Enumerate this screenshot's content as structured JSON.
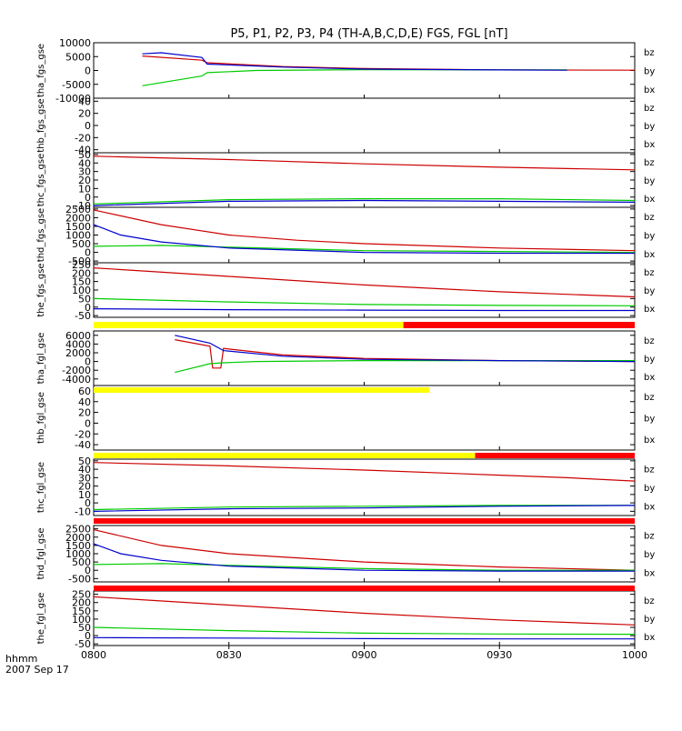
{
  "title": "P5, P1, P2, P3, P4 (TH-A,B,C,D,E) FGS, FGL [nT]",
  "footer": {
    "time_label": "hhmm",
    "date_label": "2007 Sep 17"
  },
  "colors": {
    "bz": "#cc0000",
    "by": "#00cc00",
    "bx": "#0000cc",
    "bar_yellow": "#ffff00",
    "bar_red": "#ff0000",
    "bar_black": "#000000"
  },
  "chart_data": [
    {
      "type": "line",
      "ylabel": "tha_fgs_gse",
      "ylim": [
        -10000,
        10000
      ],
      "yticks": [
        10000,
        5000,
        0,
        -5000,
        -10000
      ],
      "ytick_labels": [
        "10000",
        "5000",
        "0",
        "-5000",
        "-10000"
      ],
      "legend": [
        "bz",
        "by",
        "bx"
      ],
      "series": [
        {
          "name": "bz",
          "points": [
            [
              8.18,
              5200
            ],
            [
              8.4,
              3700
            ],
            [
              8.42,
              2800
            ],
            [
              8.7,
              1400
            ],
            [
              9.0,
              700
            ],
            [
              9.5,
              200
            ],
            [
              10.0,
              100
            ]
          ]
        },
        {
          "name": "by",
          "points": [
            [
              8.18,
              -5500
            ],
            [
              8.4,
              -2000
            ],
            [
              8.42,
              -800
            ],
            [
              8.6,
              0
            ],
            [
              9.0,
              300
            ],
            [
              9.5,
              200
            ],
            [
              9.75,
              200
            ]
          ]
        },
        {
          "name": "bx",
          "points": [
            [
              8.18,
              6000
            ],
            [
              8.25,
              6400
            ],
            [
              8.4,
              4700
            ],
            [
              8.42,
              2300
            ],
            [
              8.7,
              1200
            ],
            [
              9.0,
              500
            ],
            [
              9.5,
              200
            ],
            [
              9.75,
              100
            ]
          ]
        }
      ]
    },
    {
      "type": "line",
      "ylabel": "thb_fgs_gse",
      "ylim": [
        -45,
        45
      ],
      "yticks": [
        40,
        20,
        0,
        -20,
        -40
      ],
      "ytick_labels": [
        "40",
        "20",
        "0",
        "-20",
        "-40"
      ],
      "legend": [
        "bz",
        "by",
        "bx"
      ],
      "series": []
    },
    {
      "type": "line",
      "ylabel": "thc_fgs_gse",
      "ylim": [
        -12,
        52
      ],
      "yticks": [
        50,
        40,
        30,
        20,
        10,
        0,
        -10
      ],
      "ytick_labels": [
        "50",
        "40",
        "30",
        "20",
        "10",
        "0",
        "-10"
      ],
      "legend": [
        "bz",
        "by",
        "bx"
      ],
      "series": [
        {
          "name": "bz",
          "points": [
            [
              8.0,
              48
            ],
            [
              8.5,
              44
            ],
            [
              9.0,
              39
            ],
            [
              9.5,
              35
            ],
            [
              10.0,
              32
            ]
          ]
        },
        {
          "name": "by",
          "points": [
            [
              8.0,
              -8
            ],
            [
              8.5,
              -3
            ],
            [
              9.0,
              -2
            ],
            [
              9.5,
              -2
            ],
            [
              10.0,
              -4
            ]
          ]
        },
        {
          "name": "bx",
          "points": [
            [
              8.0,
              -10
            ],
            [
              8.5,
              -5
            ],
            [
              9.0,
              -4
            ],
            [
              9.5,
              -5
            ],
            [
              10.0,
              -6
            ]
          ]
        }
      ]
    },
    {
      "type": "line",
      "ylabel": "thd_fgs_gse",
      "ylim": [
        -600,
        2600
      ],
      "yticks": [
        2500,
        2000,
        1500,
        1000,
        500,
        0,
        -500
      ],
      "ytick_labels": [
        "2500",
        "2000",
        "1500",
        "1000",
        "500",
        "0",
        "-500"
      ],
      "legend": [
        "bz",
        "by",
        "bx"
      ],
      "series": [
        {
          "name": "bz",
          "points": [
            [
              8.0,
              2450
            ],
            [
              8.25,
              1600
            ],
            [
              8.5,
              1000
            ],
            [
              8.75,
              700
            ],
            [
              9.0,
              500
            ],
            [
              9.5,
              250
            ],
            [
              10.0,
              100
            ]
          ]
        },
        {
          "name": "by",
          "points": [
            [
              8.0,
              350
            ],
            [
              8.25,
              400
            ],
            [
              8.5,
              300
            ],
            [
              9.0,
              100
            ],
            [
              9.5,
              50
            ],
            [
              10.0,
              0
            ]
          ]
        },
        {
          "name": "bx",
          "points": [
            [
              8.0,
              1600
            ],
            [
              8.1,
              1000
            ],
            [
              8.25,
              600
            ],
            [
              8.5,
              250
            ],
            [
              9.0,
              0
            ],
            [
              9.5,
              -50
            ],
            [
              10.0,
              -50
            ]
          ]
        }
      ]
    },
    {
      "type": "line",
      "ylabel": "the_fgs_gse",
      "ylim": [
        -60,
        260
      ],
      "yticks": [
        250,
        200,
        150,
        100,
        50,
        0,
        -50
      ],
      "ytick_labels": [
        "250",
        "200",
        "150",
        "100",
        "50",
        "0",
        "-50"
      ],
      "legend": [
        "bz",
        "by",
        "bx"
      ],
      "series": [
        {
          "name": "bz",
          "points": [
            [
              8.0,
              230
            ],
            [
              8.5,
              180
            ],
            [
              9.0,
              130
            ],
            [
              9.5,
              90
            ],
            [
              10.0,
              60
            ]
          ]
        },
        {
          "name": "by",
          "points": [
            [
              8.0,
              50
            ],
            [
              8.5,
              30
            ],
            [
              9.0,
              15
            ],
            [
              9.5,
              10
            ],
            [
              10.0,
              8
            ]
          ]
        },
        {
          "name": "bx",
          "points": [
            [
              8.0,
              -10
            ],
            [
              8.5,
              -15
            ],
            [
              9.0,
              -18
            ],
            [
              9.5,
              -20
            ],
            [
              10.0,
              -20
            ]
          ]
        }
      ]
    },
    {
      "type": "line",
      "ylabel": "tha_fgl_gse",
      "ylim": [
        -5500,
        7000
      ],
      "yticks": [
        6000,
        4000,
        2000,
        0,
        -2000,
        -4000
      ],
      "ytick_labels": [
        "6000",
        "4000",
        "2000",
        "0",
        "-2000",
        "-4000"
      ],
      "legend": [
        "bz",
        "by",
        "bx"
      ],
      "series": [
        {
          "name": "bz",
          "points": [
            [
              8.3,
              5000
            ],
            [
              8.43,
              3500
            ],
            [
              8.44,
              -1500
            ],
            [
              8.47,
              -1500
            ],
            [
              8.48,
              3000
            ],
            [
              8.7,
              1500
            ],
            [
              9.0,
              700
            ],
            [
              9.5,
              200
            ],
            [
              10.0,
              0
            ]
          ]
        },
        {
          "name": "by",
          "points": [
            [
              8.3,
              -2500
            ],
            [
              8.43,
              -500
            ],
            [
              8.48,
              -300
            ],
            [
              8.6,
              0
            ],
            [
              9.0,
              200
            ],
            [
              9.5,
              200
            ],
            [
              10.0,
              200
            ]
          ]
        },
        {
          "name": "bx",
          "points": [
            [
              8.3,
              6000
            ],
            [
              8.43,
              4200
            ],
            [
              8.48,
              2500
            ],
            [
              8.7,
              1200
            ],
            [
              9.0,
              500
            ],
            [
              9.5,
              200
            ],
            [
              10.0,
              0
            ]
          ]
        }
      ]
    },
    {
      "type": "line",
      "ylabel": "thb_fgl_gse",
      "ylim": [
        -50,
        70
      ],
      "yticks": [
        60,
        40,
        20,
        0,
        -20,
        -40
      ],
      "ytick_labels": [
        "60",
        "40",
        "20",
        "0",
        "-20",
        "-40"
      ],
      "legend": [
        "bz",
        "by",
        "bx"
      ],
      "series": []
    },
    {
      "type": "line",
      "ylabel": "thc_fgl_gse",
      "ylim": [
        -15,
        52
      ],
      "yticks": [
        50,
        40,
        30,
        20,
        10,
        0,
        -10
      ],
      "ytick_labels": [
        "50",
        "40",
        "30",
        "20",
        "10",
        "0",
        "-10"
      ],
      "legend": [
        "bz",
        "by",
        "bx"
      ],
      "series": [
        {
          "name": "bz",
          "points": [
            [
              8.0,
              48
            ],
            [
              8.5,
              44
            ],
            [
              9.0,
              39
            ],
            [
              9.5,
              33
            ],
            [
              9.75,
              30
            ],
            [
              10.0,
              26
            ]
          ]
        },
        {
          "name": "by",
          "points": [
            [
              8.0,
              -8
            ],
            [
              8.5,
              -5
            ],
            [
              9.0,
              -4
            ],
            [
              9.5,
              -3
            ],
            [
              10.0,
              -3
            ]
          ]
        },
        {
          "name": "bx",
          "points": [
            [
              8.0,
              -10
            ],
            [
              8.5,
              -7
            ],
            [
              9.0,
              -6
            ],
            [
              9.5,
              -4
            ],
            [
              10.0,
              -3
            ]
          ]
        }
      ]
    },
    {
      "type": "line",
      "ylabel": "thd_fgl_gse",
      "ylim": [
        -700,
        2700
      ],
      "yticks": [
        2500,
        2000,
        1500,
        1000,
        500,
        0,
        -500
      ],
      "ytick_labels": [
        "2500",
        "2000",
        "1500",
        "1000",
        "500",
        "0",
        "-500"
      ],
      "legend": [
        "bz",
        "by",
        "bx"
      ],
      "series": [
        {
          "name": "bz",
          "points": [
            [
              8.0,
              2450
            ],
            [
              8.25,
              1500
            ],
            [
              8.5,
              1000
            ],
            [
              9.0,
              500
            ],
            [
              9.5,
              200
            ],
            [
              10.0,
              0
            ]
          ]
        },
        {
          "name": "by",
          "points": [
            [
              8.0,
              350
            ],
            [
              8.25,
              400
            ],
            [
              8.5,
              300
            ],
            [
              9.0,
              100
            ],
            [
              9.5,
              0
            ],
            [
              10.0,
              0
            ]
          ]
        },
        {
          "name": "bx",
          "points": [
            [
              8.0,
              1600
            ],
            [
              8.1,
              1000
            ],
            [
              8.25,
              600
            ],
            [
              8.5,
              250
            ],
            [
              9.0,
              0
            ],
            [
              9.5,
              -50
            ],
            [
              10.0,
              -50
            ]
          ]
        }
      ]
    },
    {
      "type": "line",
      "ylabel": "the_fgl_gse",
      "ylim": [
        -60,
        270
      ],
      "yticks": [
        250,
        200,
        150,
        100,
        50,
        0,
        -50
      ],
      "ytick_labels": [
        "250",
        "200",
        "150",
        "100",
        "50",
        "0",
        "-50"
      ],
      "legend": [
        "bz",
        "by",
        "bx"
      ],
      "series": [
        {
          "name": "bz",
          "points": [
            [
              8.0,
              235
            ],
            [
              8.5,
              185
            ],
            [
              9.0,
              135
            ],
            [
              9.5,
              95
            ],
            [
              10.0,
              65
            ]
          ]
        },
        {
          "name": "by",
          "points": [
            [
              8.0,
              50
            ],
            [
              8.5,
              30
            ],
            [
              9.0,
              15
            ],
            [
              9.5,
              10
            ],
            [
              10.0,
              8
            ]
          ]
        },
        {
          "name": "bx",
          "points": [
            [
              8.0,
              -12
            ],
            [
              8.5,
              -15
            ],
            [
              9.0,
              -18
            ],
            [
              9.5,
              -20
            ],
            [
              10.0,
              -20
            ]
          ]
        }
      ]
    }
  ],
  "x_axis": {
    "xlim": [
      8.0,
      10.0
    ],
    "ticks": [
      8.0,
      8.5,
      9.0,
      9.5,
      10.0
    ],
    "tick_labels": [
      "0800",
      "0830",
      "0900",
      "0930",
      "1000"
    ]
  },
  "status_bars": [
    {
      "after_panel": 4,
      "segments": [
        {
          "start": 8.0,
          "end": 9.145,
          "color": "bar_yellow"
        },
        {
          "start": 9.145,
          "end": 10.0,
          "color": "bar_red"
        }
      ]
    },
    {
      "after_panel": 5,
      "segments": [
        {
          "start": 8.0,
          "end": 9.24,
          "color": "bar_yellow"
        }
      ]
    },
    {
      "after_panel": 6,
      "segments": [
        {
          "start": 8.0,
          "end": 9.41,
          "color": "bar_yellow"
        },
        {
          "start": 9.41,
          "end": 10.0,
          "color": "bar_red"
        }
      ]
    },
    {
      "after_panel": 7,
      "segments": [
        {
          "start": 8.0,
          "end": 10.0,
          "color": "bar_red"
        }
      ]
    },
    {
      "after_panel": 8,
      "segments": [
        {
          "start": 8.0,
          "end": 10.0,
          "color": "bar_red"
        }
      ]
    }
  ]
}
